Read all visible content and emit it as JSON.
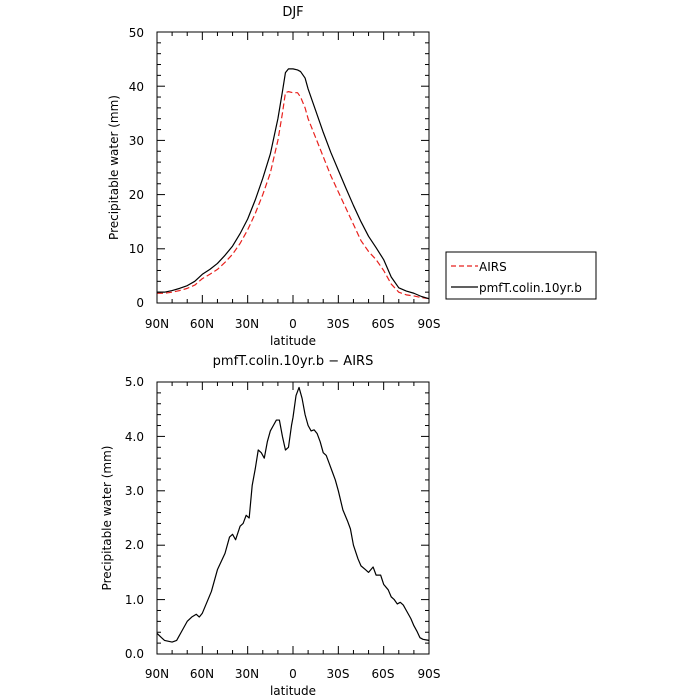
{
  "chart_data": [
    {
      "type": "line",
      "title": "DJF",
      "xlabel": "latitude",
      "ylabel": "Precipitable water (mm)",
      "xlim": [
        90,
        -90
      ],
      "ylim": [
        0,
        50
      ],
      "x_ticks": [
        90,
        60,
        30,
        0,
        -30,
        -60,
        -90
      ],
      "x_tick_labels": [
        "90N",
        "60N",
        "30N",
        "0",
        "30S",
        "60S",
        "90S"
      ],
      "y_ticks": [
        0,
        10,
        20,
        30,
        40,
        50
      ],
      "y_tick_labels": [
        "0",
        "10",
        "20",
        "30",
        "40",
        "50"
      ],
      "grid": false,
      "legend": "right",
      "x": [
        90,
        85,
        80,
        75,
        70,
        65,
        60,
        55,
        50,
        45,
        40,
        35,
        30,
        25,
        20,
        15,
        10,
        7,
        5,
        3,
        0,
        -3,
        -5,
        -8,
        -10,
        -15,
        -20,
        -25,
        -30,
        -35,
        -40,
        -45,
        -50,
        -55,
        -60,
        -65,
        -70,
        -75,
        -80,
        -85,
        -90
      ],
      "series": [
        {
          "name": "AIRS",
          "color": "#e8211d",
          "dash": "dashed",
          "values": [
            1.8,
            1.8,
            2.0,
            2.3,
            2.7,
            3.3,
            4.5,
            5.3,
            6.2,
            7.5,
            9.0,
            11.0,
            13.5,
            16.5,
            20.0,
            24.0,
            30.0,
            35.0,
            38.8,
            39.0,
            38.8,
            38.8,
            38.0,
            36.0,
            34.0,
            30.5,
            27.0,
            23.5,
            20.5,
            17.5,
            14.5,
            11.5,
            9.5,
            8.0,
            6.0,
            3.5,
            2.0,
            1.5,
            1.3,
            1.0,
            0.8
          ]
        },
        {
          "name": "pmfT.colin.10yr.b",
          "color": "#000000",
          "dash": "solid",
          "values": [
            2.0,
            2.0,
            2.3,
            2.7,
            3.2,
            4.0,
            5.3,
            6.2,
            7.3,
            8.8,
            10.5,
            12.8,
            15.5,
            19.0,
            23.0,
            27.5,
            34.0,
            39.0,
            42.5,
            43.2,
            43.2,
            43.0,
            42.7,
            41.5,
            39.5,
            35.5,
            31.5,
            27.8,
            24.5,
            21.2,
            18.0,
            15.0,
            12.3,
            10.2,
            8.0,
            4.8,
            2.8,
            2.2,
            1.8,
            1.2,
            0.8
          ]
        }
      ]
    },
    {
      "type": "line",
      "title": "pmfT.colin.10yr.b  −  AIRS",
      "xlabel": "latitude",
      "ylabel": "Precipitable water (mm)",
      "xlim": [
        90,
        -90
      ],
      "ylim": [
        0,
        5
      ],
      "x_ticks": [
        90,
        60,
        30,
        0,
        -30,
        -60,
        -90
      ],
      "x_tick_labels": [
        "90N",
        "60N",
        "30N",
        "0",
        "30S",
        "60S",
        "90S"
      ],
      "y_ticks": [
        0,
        1,
        2,
        3,
        4,
        5
      ],
      "y_tick_labels": [
        "0.0",
        "1.0",
        "2.0",
        "3.0",
        "4.0",
        "5.0"
      ],
      "grid": false,
      "x": [
        90,
        87,
        85,
        80,
        77,
        74,
        70,
        67,
        64,
        62,
        60,
        57,
        54,
        50,
        45,
        42,
        40,
        38,
        35,
        33,
        31,
        29,
        27,
        25,
        23,
        21,
        19,
        17,
        15,
        13,
        11,
        9,
        7,
        5,
        3,
        1,
        0,
        -2,
        -4,
        -6,
        -8,
        -10,
        -12,
        -14,
        -16,
        -18,
        -20,
        -22,
        -24,
        -26,
        -28,
        -30,
        -33,
        -36,
        -38,
        -40,
        -43,
        -45,
        -48,
        -50,
        -53,
        -55,
        -58,
        -60,
        -63,
        -65,
        -67,
        -69,
        -71,
        -73,
        -75,
        -78,
        -80,
        -82,
        -84,
        -86,
        -88,
        -90
      ],
      "series": [
        {
          "name": "",
          "color": "#000000",
          "dash": "solid",
          "values": [
            0.38,
            0.3,
            0.25,
            0.22,
            0.25,
            0.4,
            0.6,
            0.68,
            0.73,
            0.68,
            0.75,
            0.95,
            1.15,
            1.55,
            1.85,
            2.15,
            2.2,
            2.1,
            2.35,
            2.4,
            2.55,
            2.5,
            3.1,
            3.4,
            3.75,
            3.7,
            3.6,
            3.9,
            4.1,
            4.2,
            4.3,
            4.3,
            4.0,
            3.75,
            3.8,
            4.2,
            4.35,
            4.75,
            4.9,
            4.7,
            4.4,
            4.2,
            4.1,
            4.12,
            4.05,
            3.9,
            3.7,
            3.65,
            3.5,
            3.35,
            3.2,
            3.0,
            2.65,
            2.45,
            2.3,
            2.0,
            1.75,
            1.62,
            1.55,
            1.5,
            1.6,
            1.45,
            1.45,
            1.28,
            1.18,
            1.05,
            1.0,
            0.92,
            0.95,
            0.9,
            0.8,
            0.65,
            0.52,
            0.42,
            0.3,
            0.27,
            0.26,
            0.25
          ]
        }
      ]
    }
  ]
}
